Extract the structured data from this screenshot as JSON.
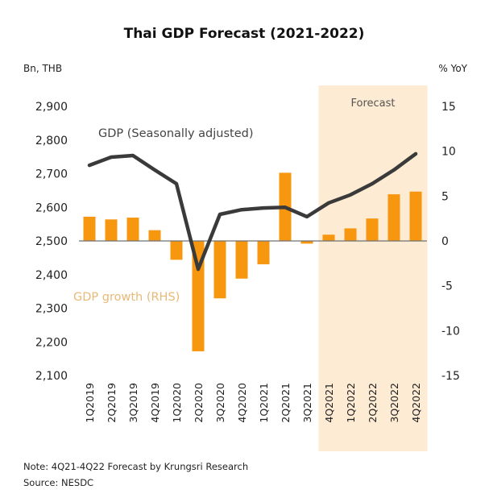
{
  "chart_data": {
    "type": "bar+line",
    "title": "Thai GDP Forecast (2021-2022)",
    "categories": [
      "1Q2019",
      "2Q2019",
      "3Q2019",
      "4Q2019",
      "1Q2020",
      "2Q2020",
      "3Q2020",
      "4Q2020",
      "1Q2021",
      "2Q2021",
      "3Q2021",
      "4Q2021",
      "1Q2022",
      "2Q2022",
      "3Q2022",
      "4Q2022"
    ],
    "left_axis": {
      "label": "Bn, THB",
      "range": [
        2100,
        2900
      ],
      "ticks": [
        2900,
        2800,
        2700,
        2600,
        2500,
        2400,
        2300,
        2200,
        2100
      ],
      "tick_labels": [
        "2,900",
        "2,800",
        "2,700",
        "2,600",
        "2,500",
        "2,400",
        "2,300",
        "2,200",
        "2,100"
      ]
    },
    "right_axis": {
      "label": "% YoY",
      "range": [
        -15,
        15
      ],
      "ticks": [
        15,
        10,
        5,
        0,
        -5,
        -10,
        -15
      ],
      "tick_labels": [
        "15",
        "10",
        "5",
        "0",
        "-5",
        "-10",
        "-15"
      ]
    },
    "series": [
      {
        "name": "GDP (Seasonally adjusted)",
        "type": "line",
        "axis": "left",
        "color": "#3a3a3a",
        "values": [
          2725,
          2749,
          2754,
          2711,
          2670,
          2416,
          2579,
          2593,
          2598,
          2600,
          2572,
          2613,
          2637,
          2670,
          2711,
          2759
        ]
      },
      {
        "name": "GDP growth (RHS)",
        "type": "bar",
        "axis": "right",
        "color": "#f7960f",
        "values": [
          2.7,
          2.4,
          2.6,
          1.2,
          -2.1,
          -12.3,
          -6.4,
          -4.2,
          -2.6,
          7.6,
          -0.3,
          0.7,
          1.4,
          2.5,
          5.2,
          5.5
        ]
      }
    ],
    "annotations": {
      "line_label": "GDP (Seasonally adjusted)",
      "bar_label": "GDP growth (RHS)",
      "forecast_label": "Forecast",
      "forecast_start": "4Q2021",
      "forecast_end": "4Q2022",
      "forecast_color": "#fdebd3"
    },
    "grid": false,
    "legend": "none (inline labels)"
  },
  "footer": {
    "note": "Note: 4Q21-4Q22 Forecast by Krungsri Research",
    "source": "Source:  NESDC"
  }
}
